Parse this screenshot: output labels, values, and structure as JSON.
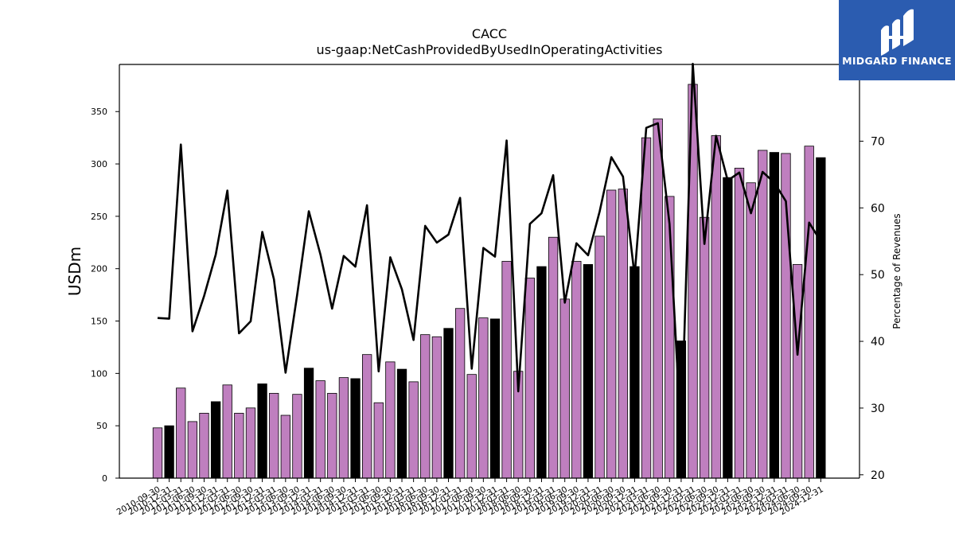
{
  "chart_data": {
    "type": "bar",
    "title": "CACC",
    "subtitle": "us-gaap:NetCashProvidedByUsedInOperatingActivities",
    "ylabel": "USDm",
    "y2label": "Percentage of Revenues",
    "ylim": [
      0,
      395
    ],
    "y2lim": [
      19.5,
      81.5
    ],
    "yticks": [
      0,
      50,
      100,
      150,
      200,
      250,
      300,
      350
    ],
    "y2ticks": [
      20,
      30,
      40,
      50,
      60,
      70
    ],
    "grid": false,
    "legend": "none",
    "categories": [
      "2010-09-30",
      "2010-12-31",
      "2011-03-31",
      "2011-06-30",
      "2011-09-30",
      "2011-12-31",
      "2012-03-31",
      "2012-06-30",
      "2012-09-30",
      "2012-12-31",
      "2013-03-31",
      "2013-06-30",
      "2013-09-30",
      "2013-12-31",
      "2014-03-31",
      "2014-06-30",
      "2014-09-30",
      "2014-12-31",
      "2015-03-31",
      "2015-06-30",
      "2015-09-30",
      "2015-12-31",
      "2016-03-31",
      "2016-06-30",
      "2016-09-30",
      "2016-12-31",
      "2017-03-31",
      "2017-06-30",
      "2017-09-30",
      "2017-12-31",
      "2018-03-31",
      "2018-06-30",
      "2018-09-30",
      "2018-12-31",
      "2019-03-31",
      "2019-06-30",
      "2019-09-30",
      "2019-12-31",
      "2020-03-31",
      "2020-06-30",
      "2020-09-30",
      "2020-12-31",
      "2021-03-31",
      "2021-06-30",
      "2021-09-30",
      "2021-12-31",
      "2022-03-31",
      "2022-06-30",
      "2022-09-30",
      "2022-12-31",
      "2023-03-31",
      "2023-06-30",
      "2023-09-30",
      "2023-12-31",
      "2024-03-31",
      "2024-06-30",
      "2024-09-30",
      "2024-12-31"
    ],
    "series": [
      {
        "role": "bar",
        "axis": "left",
        "values": [
          48,
          50,
          86,
          54,
          62,
          73,
          89,
          62,
          67,
          90,
          81,
          60,
          80,
          105,
          93,
          81,
          96,
          95,
          118,
          72,
          111,
          104,
          92,
          137,
          135,
          143,
          162,
          99,
          153,
          152,
          207,
          102,
          191,
          202,
          230,
          171,
          207,
          204,
          231,
          275,
          276,
          202,
          325,
          343,
          269,
          131,
          376,
          249,
          327,
          287,
          296,
          282,
          313,
          311,
          310,
          204,
          317,
          306
        ],
        "highlight": [
          false,
          true,
          false,
          false,
          false,
          true,
          false,
          false,
          false,
          true,
          false,
          false,
          false,
          true,
          false,
          false,
          false,
          true,
          false,
          false,
          false,
          true,
          false,
          false,
          false,
          true,
          false,
          false,
          false,
          true,
          false,
          false,
          false,
          true,
          false,
          false,
          false,
          true,
          false,
          false,
          false,
          true,
          false,
          false,
          false,
          true,
          false,
          false,
          false,
          true,
          false,
          false,
          false,
          true,
          false,
          false,
          false,
          true
        ]
      },
      {
        "role": "line",
        "axis": "right",
        "values": [
          43.5,
          43.4,
          69.5,
          41.5,
          46.8,
          53.0,
          62.6,
          41.2,
          43.0,
          56.4,
          49.3,
          35.3,
          47.0,
          59.5,
          53.0,
          44.9,
          52.8,
          51.2,
          60.4,
          35.5,
          52.6,
          47.8,
          40.2,
          57.3,
          54.8,
          56.0,
          61.5,
          35.9,
          54.0,
          52.7,
          70.1,
          32.5,
          57.6,
          59.2,
          64.9,
          45.8,
          54.7,
          52.9,
          59.5,
          67.6,
          64.7,
          49.8,
          72.0,
          72.7,
          57.6,
          25.5,
          81.6,
          54.6,
          70.8,
          64.1,
          65.3,
          59.2,
          65.4,
          63.8,
          61.0,
          38.0,
          57.8,
          55.0
        ]
      }
    ],
    "colors": {
      "bar": "#bf7fbf",
      "bar_highlight": "#000000",
      "bar_edge": "#000000",
      "line": "#000000",
      "axis": "#000000"
    }
  },
  "logo": {
    "text": "MIDGARD FINANCE",
    "icon": "midgard-logo-mark",
    "background": "#2b5cb0"
  }
}
